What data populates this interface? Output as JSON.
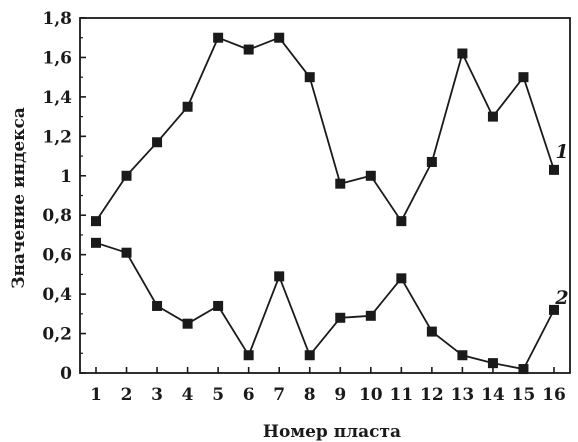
{
  "chart_data": {
    "type": "line",
    "xlabel": "Номер пласта",
    "ylabel": "Значение индекса",
    "x": [
      1,
      2,
      3,
      4,
      5,
      6,
      7,
      8,
      9,
      10,
      11,
      12,
      13,
      14,
      15,
      16
    ],
    "xlim": [
      1,
      16
    ],
    "ylim": [
      0,
      1.8
    ],
    "y_ticks": [
      0,
      0.2,
      0.4,
      0.6,
      0.8,
      1.0,
      1.2,
      1.4,
      1.6,
      1.8
    ],
    "y_tick_labels": [
      "0",
      "0,2",
      "0,4",
      "0,6",
      "0,8",
      "1",
      "1,2",
      "1,4",
      "1,6",
      "1,8"
    ],
    "x_tick_labels": [
      "1",
      "2",
      "3",
      "4",
      "5",
      "6",
      "7",
      "8",
      "9",
      "10",
      "11",
      "12",
      "13",
      "14",
      "15",
      "16"
    ],
    "grid": false,
    "marker": "square",
    "series": [
      {
        "name": "1",
        "values": [
          0.77,
          1.0,
          1.17,
          1.35,
          1.7,
          1.64,
          1.7,
          1.5,
          0.96,
          1.0,
          0.77,
          1.07,
          1.62,
          1.3,
          1.5,
          1.03
        ]
      },
      {
        "name": "2",
        "values": [
          0.66,
          0.61,
          0.34,
          0.25,
          0.34,
          0.09,
          0.49,
          0.09,
          0.28,
          0.29,
          0.48,
          0.21,
          0.09,
          0.05,
          0.02,
          0.32
        ]
      }
    ]
  }
}
